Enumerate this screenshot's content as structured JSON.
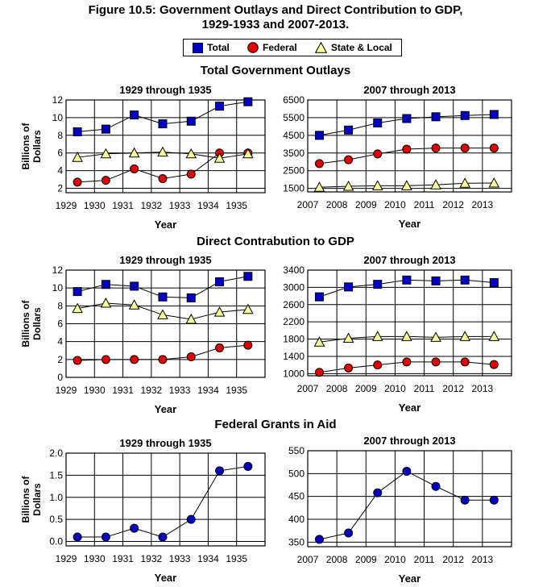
{
  "figure": {
    "title_line1": "Figure 10.5: Government Outlays and Direct Contribution to GDP,",
    "title_line2": "1929-1933 and 2007-2013."
  },
  "legend": [
    {
      "label": "Total",
      "shape": "square",
      "color": "#0000c0"
    },
    {
      "label": "Federal",
      "shape": "circle",
      "color": "#e00000"
    },
    {
      "label": "State & Local",
      "shape": "triangle",
      "color": "#ffff99"
    }
  ],
  "sections": [
    {
      "title": "Total Government Outlays"
    },
    {
      "title": "Direct Contrabution to GDP"
    },
    {
      "title": "Federal Grants in Aid"
    }
  ],
  "axis_text": {
    "ylabel_line1": "Billions of",
    "ylabel_line2": "Dollars",
    "xlabel": "Year"
  },
  "chart_data": [
    {
      "type": "line",
      "title": "1929 through 1935",
      "section": "Total Government Outlays",
      "xlabel": "Year",
      "ylabel": "Billions of Dollars",
      "x_ticks": [
        "1929",
        "1930",
        "1931",
        "1932",
        "1933",
        "1934",
        "1935"
      ],
      "y_ticks": [
        "2",
        "4",
        "6",
        "8",
        "10",
        "12"
      ],
      "ylim": [
        1.5,
        12
      ],
      "grid": true,
      "series": [
        {
          "name": "Total",
          "x": [
            1929.4,
            1930.4,
            1931.4,
            1932.4,
            1933.4,
            1934.4,
            1935.4
          ],
          "values": [
            8.4,
            8.7,
            10.3,
            9.3,
            9.6,
            11.3,
            11.8
          ]
        },
        {
          "name": "Federal",
          "x": [
            1929.4,
            1930.4,
            1931.4,
            1932.4,
            1933.4,
            1934.4,
            1935.4
          ],
          "values": [
            2.7,
            2.9,
            4.2,
            3.1,
            3.6,
            6.0,
            6.0
          ]
        },
        {
          "name": "State & Local",
          "x": [
            1929.4,
            1930.4,
            1931.4,
            1932.4,
            1933.4,
            1934.4,
            1935.4
          ],
          "values": [
            5.5,
            5.9,
            6.0,
            6.1,
            5.9,
            5.4,
            5.9
          ]
        }
      ]
    },
    {
      "type": "line",
      "title": "2007 through 2013",
      "section": "Total Government Outlays",
      "xlabel": "Year",
      "ylabel": "",
      "x_ticks": [
        "2007",
        "2008",
        "2009",
        "2010",
        "2011",
        "2012",
        "2013"
      ],
      "y_ticks": [
        "1500",
        "2500",
        "3500",
        "4500",
        "5500",
        "6500"
      ],
      "ylim": [
        1300,
        6500
      ],
      "grid": true,
      "series": [
        {
          "name": "Total",
          "x": [
            2007.4,
            2008.4,
            2009.4,
            2010.4,
            2011.4,
            2012.4,
            2013.4
          ],
          "values": [
            4500,
            4800,
            5200,
            5450,
            5550,
            5620,
            5680
          ]
        },
        {
          "name": "Federal",
          "x": [
            2007.4,
            2008.4,
            2009.4,
            2010.4,
            2011.4,
            2012.4,
            2013.4
          ],
          "values": [
            2900,
            3120,
            3450,
            3720,
            3780,
            3780,
            3780
          ]
        },
        {
          "name": "State & Local",
          "x": [
            2007.4,
            2008.4,
            2009.4,
            2010.4,
            2011.4,
            2012.4,
            2013.4
          ],
          "values": [
            1560,
            1620,
            1650,
            1650,
            1700,
            1790,
            1800
          ]
        }
      ]
    },
    {
      "type": "line",
      "title": "1929 through 1935",
      "section": "Direct Contrabution to GDP",
      "xlabel": "Year",
      "ylabel": "Billions of Dollars",
      "x_ticks": [
        "1929",
        "1930",
        "1931",
        "1932",
        "1933",
        "1934",
        "1935"
      ],
      "y_ticks": [
        "0",
        "2",
        "4",
        "6",
        "8",
        "10",
        "12"
      ],
      "ylim": [
        0,
        12
      ],
      "grid": true,
      "series": [
        {
          "name": "Total",
          "x": [
            1929.4,
            1930.4,
            1931.4,
            1932.4,
            1933.4,
            1934.4,
            1935.4
          ],
          "values": [
            9.6,
            10.4,
            10.2,
            9.0,
            8.9,
            10.7,
            11.3
          ]
        },
        {
          "name": "Federal",
          "x": [
            1929.4,
            1930.4,
            1931.4,
            1932.4,
            1933.4,
            1934.4,
            1935.4
          ],
          "values": [
            1.9,
            2.0,
            2.0,
            2.0,
            2.3,
            3.3,
            3.6
          ]
        },
        {
          "name": "State & Local",
          "x": [
            1929.4,
            1930.4,
            1931.4,
            1932.4,
            1933.4,
            1934.4,
            1935.4
          ],
          "values": [
            7.7,
            8.3,
            8.1,
            7.0,
            6.5,
            7.3,
            7.6
          ]
        }
      ]
    },
    {
      "type": "line",
      "title": "2007 through 2013",
      "section": "Direct Contrabution to GDP",
      "xlabel": "Year",
      "ylabel": "",
      "x_ticks": [
        "2007",
        "2008",
        "2009",
        "2010",
        "2011",
        "2012",
        "2013"
      ],
      "y_ticks": [
        "1000",
        "1400",
        "1800",
        "2200",
        "2600",
        "3000",
        "3400"
      ],
      "ylim": [
        950,
        3400
      ],
      "grid": true,
      "series": [
        {
          "name": "Total",
          "x": [
            2007.4,
            2008.4,
            2009.4,
            2010.4,
            2011.4,
            2012.4,
            2013.4
          ],
          "values": [
            2780,
            3010,
            3070,
            3170,
            3150,
            3170,
            3110
          ]
        },
        {
          "name": "Federal",
          "x": [
            2007.4,
            2008.4,
            2009.4,
            2010.4,
            2011.4,
            2012.4,
            2013.4
          ],
          "values": [
            1030,
            1130,
            1200,
            1270,
            1270,
            1270,
            1210
          ]
        },
        {
          "name": "State & Local",
          "x": [
            2007.4,
            2008.4,
            2009.4,
            2010.4,
            2011.4,
            2012.4,
            2013.4
          ],
          "values": [
            1730,
            1820,
            1860,
            1860,
            1840,
            1860,
            1860
          ]
        }
      ]
    },
    {
      "type": "line",
      "title": "1929 through 1935",
      "section": "Federal Grants in Aid",
      "xlabel": "Year",
      "ylabel": "Billions of Dollars",
      "x_ticks": [
        "1929",
        "1930",
        "1931",
        "1932",
        "1933",
        "1934",
        "1935"
      ],
      "y_ticks": [
        "0.0",
        "0.5",
        "1.0",
        "1.5",
        "2.0"
      ],
      "ylim": [
        -0.1,
        2.0
      ],
      "grid": true,
      "series": [
        {
          "name": "Federal Grants in Aid",
          "x": [
            1929.4,
            1930.4,
            1931.4,
            1932.4,
            1933.4,
            1934.4,
            1935.4
          ],
          "values": [
            0.1,
            0.1,
            0.3,
            0.1,
            0.5,
            1.6,
            1.7
          ]
        }
      ]
    },
    {
      "type": "line",
      "title": "2007 through 2013",
      "section": "Federal Grants in Aid",
      "xlabel": "Year",
      "ylabel": "",
      "x_ticks": [
        "2007",
        "2008",
        "2009",
        "2010",
        "2011",
        "2012",
        "2013"
      ],
      "y_ticks": [
        "350",
        "400",
        "450",
        "500",
        "550"
      ],
      "ylim": [
        340,
        550
      ],
      "grid": true,
      "series": [
        {
          "name": "Federal Grants in Aid",
          "x": [
            2007.4,
            2008.4,
            2009.4,
            2010.4,
            2011.4,
            2012.4,
            2013.4
          ],
          "values": [
            356,
            370,
            458,
            505,
            472,
            442,
            442
          ]
        }
      ]
    }
  ]
}
